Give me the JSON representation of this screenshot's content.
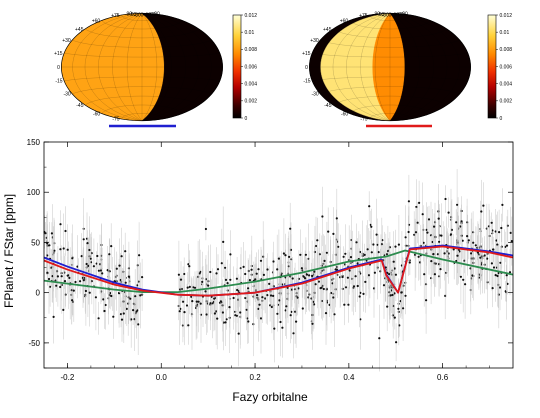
{
  "chart_data": [
    {
      "type": "heatmap",
      "panel": "left-map",
      "projection": "hammer",
      "lat_labels": [
        "+75",
        "+60",
        "+45",
        "+30",
        "+15",
        "0",
        "-15",
        "-30",
        "-45",
        "-60",
        "-75"
      ],
      "lon_labels": [
        "-90",
        "-60",
        "-30",
        "0",
        "+30",
        "+60",
        "+90"
      ],
      "colorbar": {
        "ticks": [
          "0.012",
          "0.01",
          "0.008",
          "0.006",
          "0.004",
          "0.002",
          "0"
        ],
        "range": [
          0,
          0.012
        ]
      },
      "regions": [
        {
          "lon_range": [
            -180,
            45
          ],
          "value": 0.0082
        },
        {
          "lon_range": [
            45,
            180
          ],
          "value": 0.0003
        }
      ],
      "underline_color": "#1f1fd0"
    },
    {
      "type": "heatmap",
      "panel": "right-map",
      "projection": "hammer",
      "lat_labels": [
        "+75",
        "+60",
        "+45",
        "+30",
        "+15",
        "0",
        "-15",
        "-30",
        "-45",
        "-60",
        "-75"
      ],
      "lon_labels": [
        "-90",
        "-60",
        "-30",
        "0",
        "+30",
        "+60",
        "+90"
      ],
      "colorbar": {
        "ticks": [
          "0.012",
          "0.01",
          "0.008",
          "0.006",
          "0.004",
          "0.002",
          "0"
        ],
        "range": [
          0,
          0.012
        ]
      },
      "regions": [
        {
          "lon_range": [
            -180,
            -150
          ],
          "value": 0.0003
        },
        {
          "lon_range": [
            -150,
            -35
          ],
          "value": 0.0105
        },
        {
          "lon_range": [
            -35,
            30
          ],
          "value": 0.0075
        },
        {
          "lon_range": [
            30,
            180
          ],
          "value": 0.0003
        }
      ],
      "underline_color": "#e01a1a"
    },
    {
      "type": "scatter",
      "panel": "phase-curve",
      "xlabel": "Fazy orbitalne",
      "ylabel": "FPlanet / FStar [ppm]",
      "xlim": [
        -0.25,
        0.75
      ],
      "ylim": [
        -75,
        150
      ],
      "xticks": [
        "-0.2",
        "0.0",
        "0.2",
        "0.4",
        "0.6"
      ],
      "xtick_values": [
        -0.2,
        0.0,
        0.2,
        0.4,
        0.6
      ],
      "yticks": [
        "150",
        "100",
        "50",
        "0",
        "-50"
      ],
      "ytick_values": [
        150,
        100,
        50,
        0,
        -50
      ],
      "data_gap": [
        -0.04,
        0.035
      ],
      "point_count": 820,
      "point_scatter_sd": 19,
      "errorbar_color": "#cfcfcf",
      "series": [
        {
          "color": "#2d8c4f",
          "x": [
            -0.25,
            -0.2,
            -0.1,
            -0.04,
            0.035,
            0.1,
            0.2,
            0.3,
            0.4,
            0.48,
            0.52,
            0.6,
            0.7,
            0.75
          ],
          "y": [
            12,
            9,
            3,
            0.5,
            0.5,
            4,
            11,
            20,
            31,
            36,
            42,
            33,
            23,
            18
          ]
        },
        {
          "color": "#1f1fd0",
          "x": [
            -0.25,
            -0.2,
            -0.1,
            -0.04,
            0.035,
            0.1,
            0.2,
            0.3,
            0.4,
            0.47,
            0.48,
            0.505,
            0.53,
            0.6,
            0.7,
            0.75
          ],
          "y": [
            35,
            26,
            10,
            3,
            -2,
            -3,
            0,
            10,
            25,
            33,
            18,
            0,
            44,
            47,
            41,
            37
          ]
        },
        {
          "color": "#e01a1a",
          "x": [
            -0.25,
            -0.2,
            -0.1,
            -0.04,
            0.035,
            0.1,
            0.2,
            0.3,
            0.4,
            0.47,
            0.48,
            0.505,
            0.53,
            0.6,
            0.7,
            0.75
          ],
          "y": [
            32,
            23,
            8,
            2,
            -2,
            -3,
            0,
            9,
            24,
            32,
            17,
            0,
            43,
            46,
            40,
            35
          ]
        }
      ]
    }
  ]
}
